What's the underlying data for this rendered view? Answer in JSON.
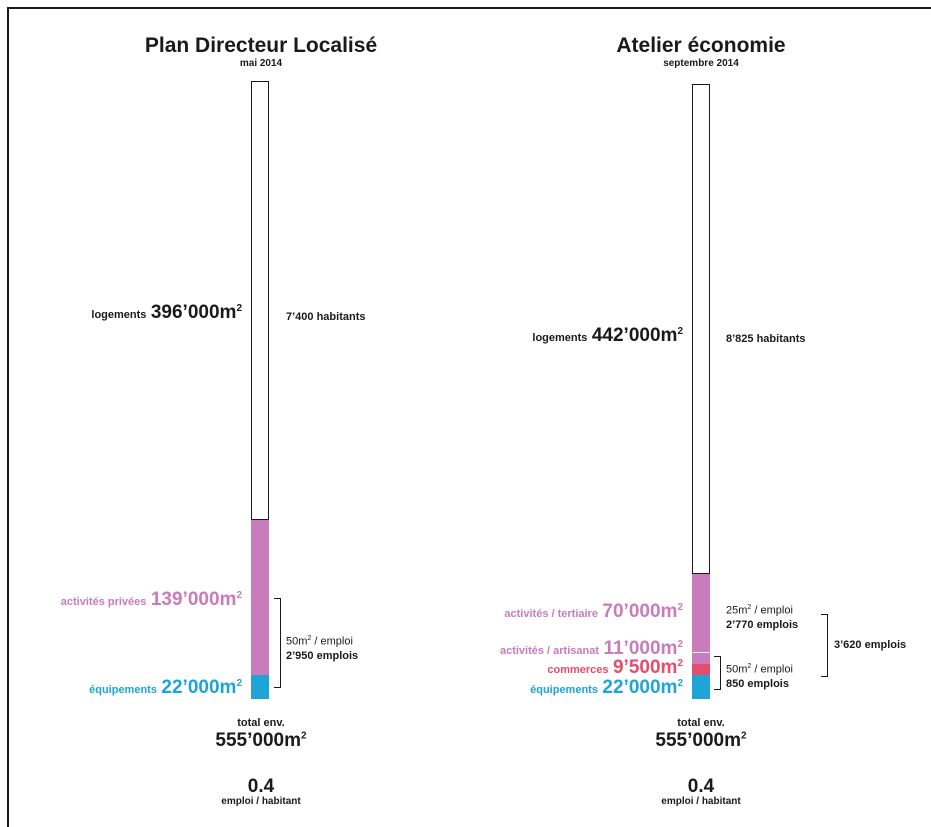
{
  "colors": {
    "logements": "#ffffff",
    "activites": "#c87cbb",
    "commerces": "#e44d6d",
    "equipements": "#1ea4d6",
    "text": "#1a1a1a"
  },
  "chart_data": [
    {
      "type": "bar",
      "title": "Plan Directeur Localisé",
      "subtitle": "mai 2014",
      "stacked": true,
      "segments": [
        {
          "label": "logements",
          "value": 396000,
          "value_text": "396’000m",
          "color_key": "logements"
        },
        {
          "label": "activités privées",
          "value": 139000,
          "value_text": "139’000m",
          "color_key": "activites"
        },
        {
          "label": "équipements",
          "value": 22000,
          "value_text": "22’000m",
          "color_key": "equipements"
        }
      ],
      "unit_sup": "2",
      "annotations": {
        "habitants": "7’400 habitants",
        "ratio_line": "50m",
        "ratio_unit": " / emploi",
        "emplois": "2’950 emplois"
      },
      "total_caption": "total env.",
      "total_text": "555’000m",
      "emploi_ratio": "0.4",
      "emploi_caption": "emploi / habitant"
    },
    {
      "type": "bar",
      "title": "Atelier économie",
      "subtitle": "septembre 2014",
      "stacked": true,
      "segments": [
        {
          "label": "logements",
          "value": 442000,
          "value_text": "442’000m",
          "color_key": "logements"
        },
        {
          "label": "activités / tertiaire",
          "value": 70000,
          "value_text": "70’000m",
          "color_key": "activites"
        },
        {
          "label": "activités / artisanat",
          "value": 11000,
          "value_text": "11’000m",
          "color_key": "activites"
        },
        {
          "label": "commerces",
          "value": 9500,
          "value_text": "9’500m",
          "color_key": "commerces"
        },
        {
          "label": "équipements",
          "value": 22000,
          "value_text": "22’000m",
          "color_key": "equipements"
        }
      ],
      "unit_sup": "2",
      "annotations": {
        "habitants": "8’825 habitants",
        "tertiaire_ratio": "25m",
        "tertiaire_unit": " / emploi",
        "tertiaire_emplois": "2’770 emplois",
        "other_ratio": "50m",
        "other_unit": " / emploi",
        "other_emplois": "850 emplois",
        "total_emplois": "3’620 emplois"
      },
      "total_caption": "total env.",
      "total_text": "555’000m",
      "emploi_ratio": "0.4",
      "emploi_caption": "emploi / habitant"
    }
  ]
}
